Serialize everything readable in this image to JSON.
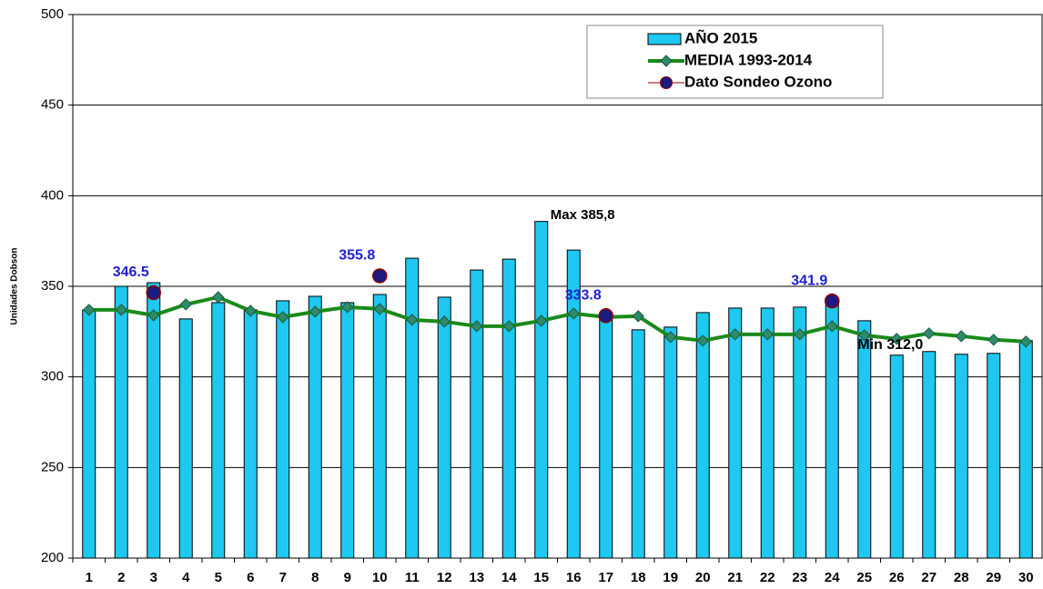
{
  "chart_data": {
    "type": "bar_line",
    "y_label": "Unidades Dobson",
    "categories": [
      "1",
      "2",
      "3",
      "4",
      "5",
      "6",
      "7",
      "8",
      "9",
      "10",
      "11",
      "12",
      "13",
      "14",
      "15",
      "16",
      "17",
      "18",
      "19",
      "20",
      "21",
      "22",
      "23",
      "24",
      "25",
      "26",
      "27",
      "28",
      "29",
      "30"
    ],
    "series": [
      {
        "name": "AÑO 2015",
        "kind": "bar",
        "color": "#1ec8f0",
        "values": [
          337,
          350,
          352,
          332,
          341,
          337,
          342,
          344.5,
          341,
          345.5,
          365.5,
          344,
          359,
          365,
          385.8,
          370,
          333,
          326,
          327.5,
          335.5,
          338,
          338,
          338.5,
          343,
          331,
          312,
          314,
          312.5,
          313,
          320
        ]
      },
      {
        "name": "MEDIA 1993-2014",
        "kind": "line",
        "color": "#1a8a1a",
        "marker_color": "#2e8b6a",
        "values": [
          337,
          337,
          334,
          340,
          344,
          336.5,
          333,
          336,
          338.5,
          337.5,
          331.5,
          330.5,
          328,
          328,
          331,
          335,
          333,
          333.5,
          322,
          320,
          323.5,
          323.5,
          323.5,
          328,
          323,
          321,
          324,
          322.5,
          320.5,
          319.5
        ]
      },
      {
        "name": "Dato Sondeo Ozono",
        "kind": "point",
        "color": "#1a1a80",
        "edge_color": "#8b0000",
        "label_color": "#2020d0",
        "values": [
          null,
          null,
          346.5,
          null,
          null,
          null,
          null,
          null,
          null,
          355.8,
          null,
          null,
          null,
          null,
          null,
          null,
          333.8,
          null,
          null,
          null,
          null,
          null,
          null,
          341.9,
          null,
          null,
          null,
          null,
          null,
          null
        ]
      }
    ],
    "annotations": [
      "Max 385,8",
      "Min 312,0"
    ],
    "ylim": [
      200,
      500
    ],
    "yticks": [
      200,
      250,
      300,
      350,
      400,
      450,
      500
    ],
    "grid": true
  }
}
